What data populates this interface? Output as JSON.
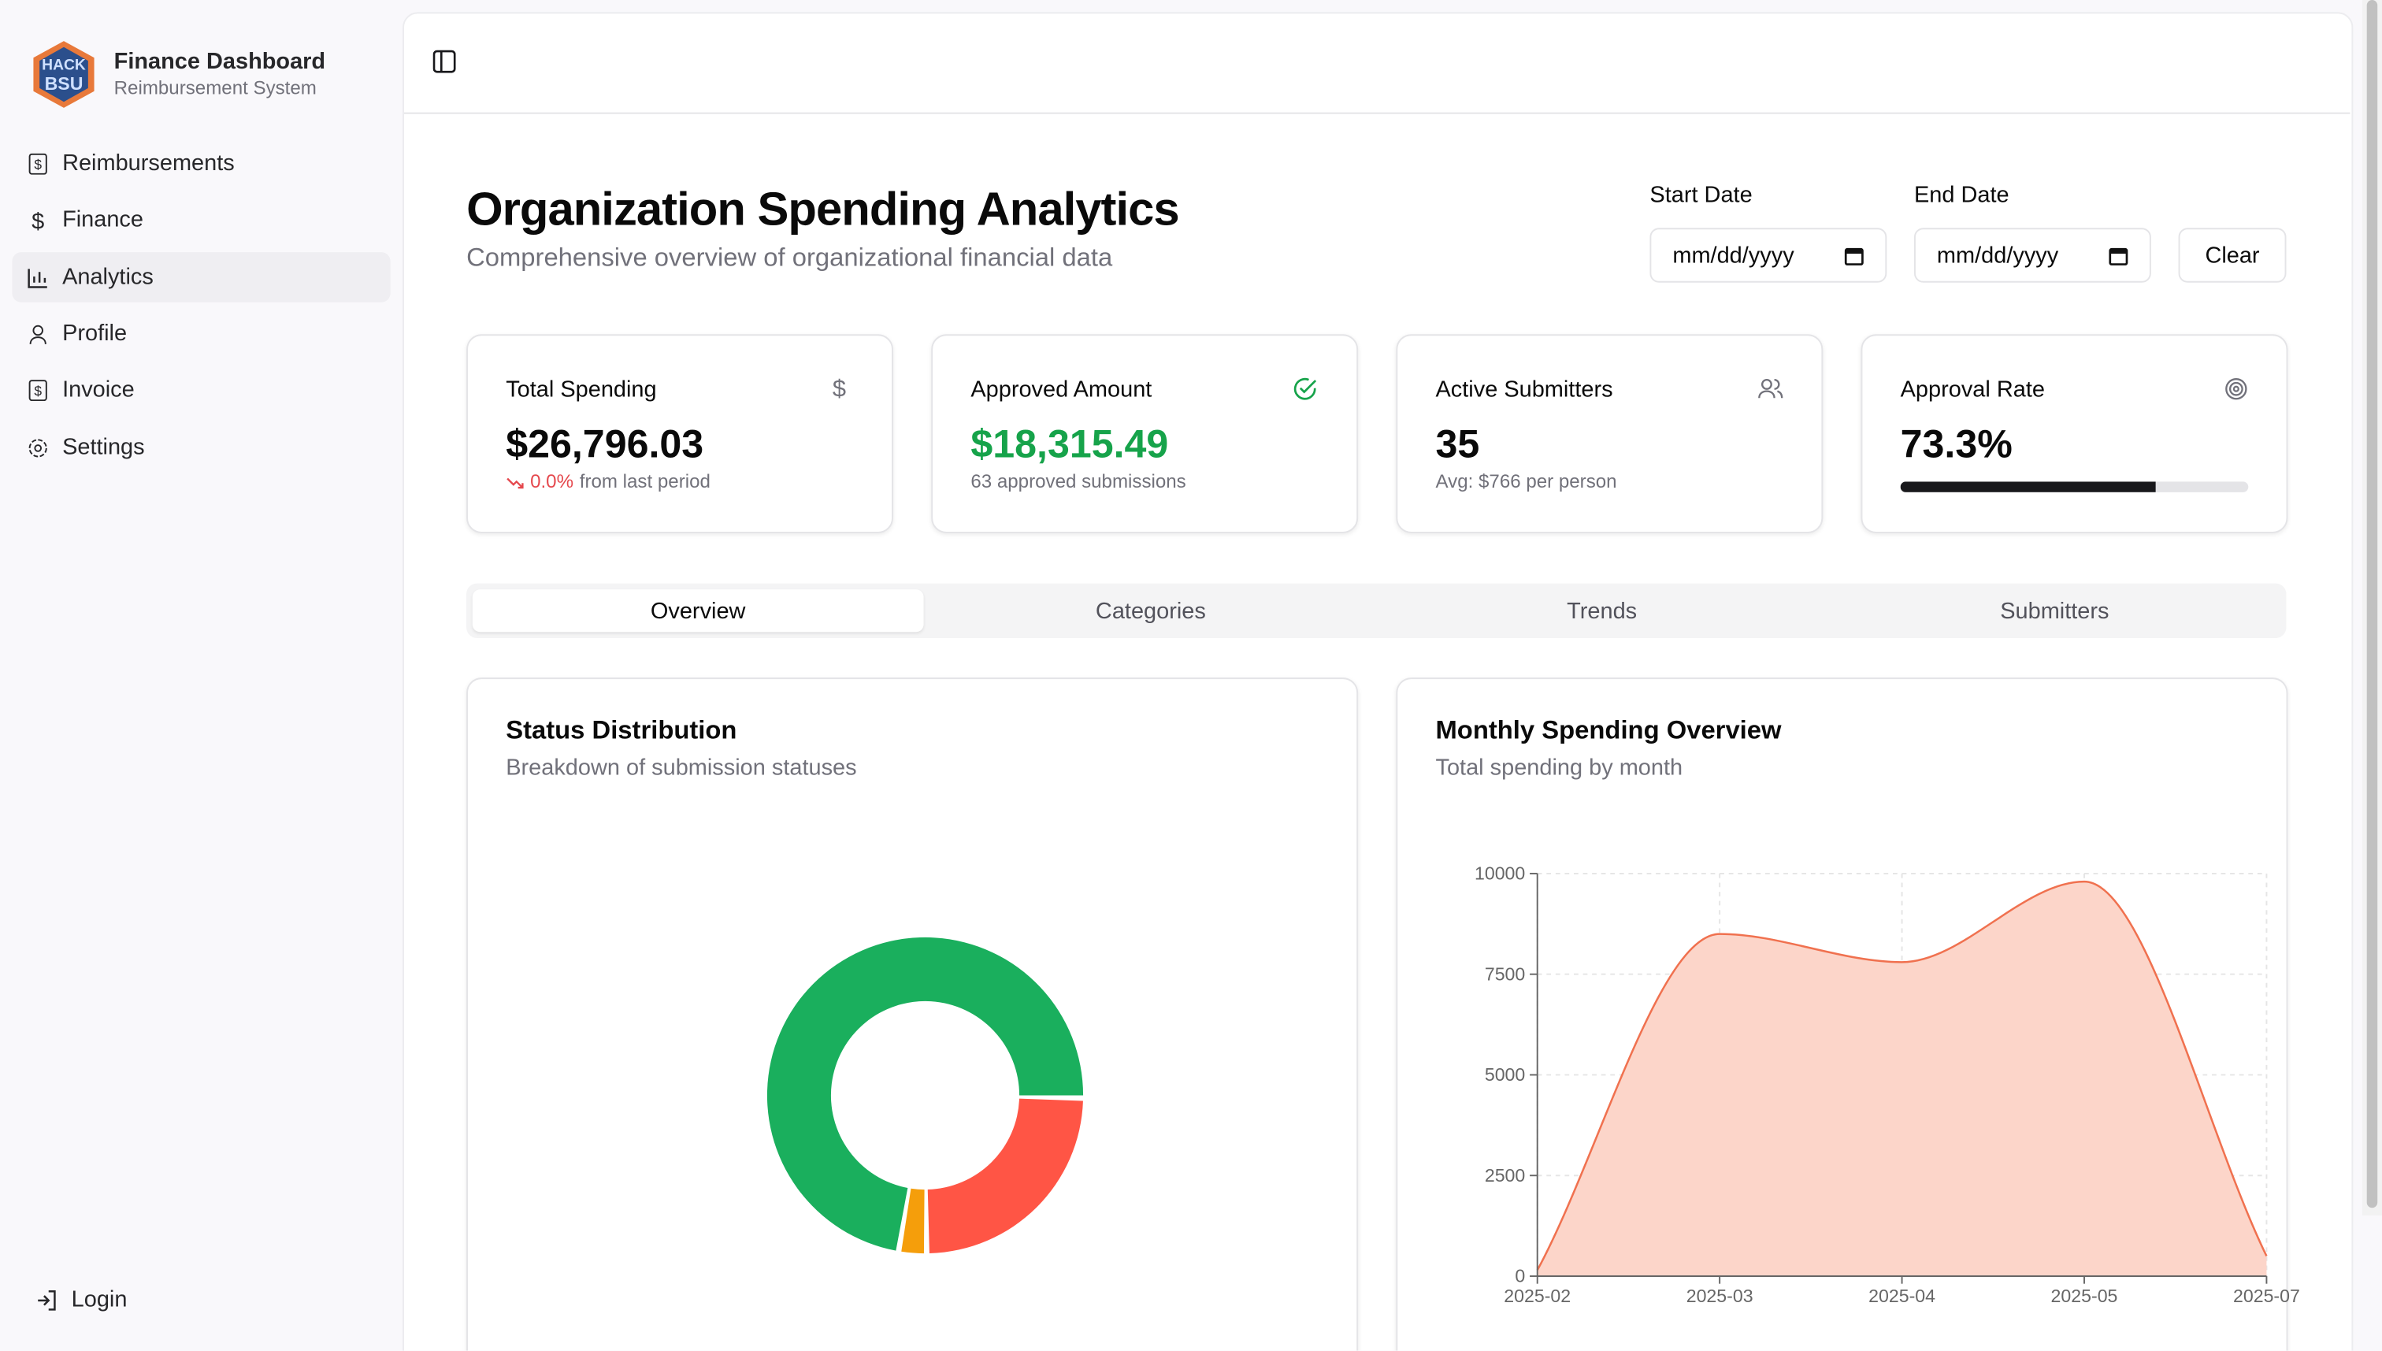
{
  "sidebar": {
    "app_title": "Finance Dashboard",
    "app_subtitle": "Reimbursement System",
    "nav": [
      "Reimbursements",
      "Finance",
      "Analytics",
      "Profile",
      "Invoice",
      "Settings"
    ],
    "login": "Login"
  },
  "header": {
    "title": "Organization Spending Analytics",
    "subtitle": "Comprehensive overview of organizational financial data"
  },
  "filters": {
    "start_label": "Start Date",
    "end_label": "End Date",
    "placeholder": "mm/dd/yyyy",
    "clear": "Clear"
  },
  "stats": [
    {
      "label": "Total Spending",
      "value": "$26,796.03",
      "change": "0.0%",
      "note": "from last period"
    },
    {
      "label": "Approved Amount",
      "value": "$18,315.49",
      "note": "63 approved submissions"
    },
    {
      "label": "Active Submitters",
      "value": "35",
      "note": "Avg: $766 per person"
    },
    {
      "label": "Approval Rate",
      "value": "73.3%",
      "progress": 73.3
    }
  ],
  "tabs": [
    "Overview",
    "Categories",
    "Trends",
    "Submitters"
  ],
  "status_chart": {
    "type": "pie",
    "title": "Status Distribution",
    "subtitle": "Breakdown of submission statuses",
    "values": [
      63,
      2,
      21
    ],
    "colors": [
      "#1aaf5d",
      "#f59e0b",
      "#ff5545"
    ]
  },
  "monthly_chart": {
    "type": "area",
    "title": "Monthly Spending Overview",
    "subtitle": "Total spending by month",
    "categories": [
      "2025-02",
      "2025-03",
      "2025-04",
      "2025-05",
      "2025-07"
    ],
    "values": [
      150,
      8500,
      7800,
      9800,
      500
    ],
    "color": "#f0714f",
    "fill": "#fcd5c9",
    "ylim": [
      0,
      10000
    ],
    "yticks": [
      0,
      2500,
      5000,
      7500,
      10000
    ],
    "grid": true
  }
}
